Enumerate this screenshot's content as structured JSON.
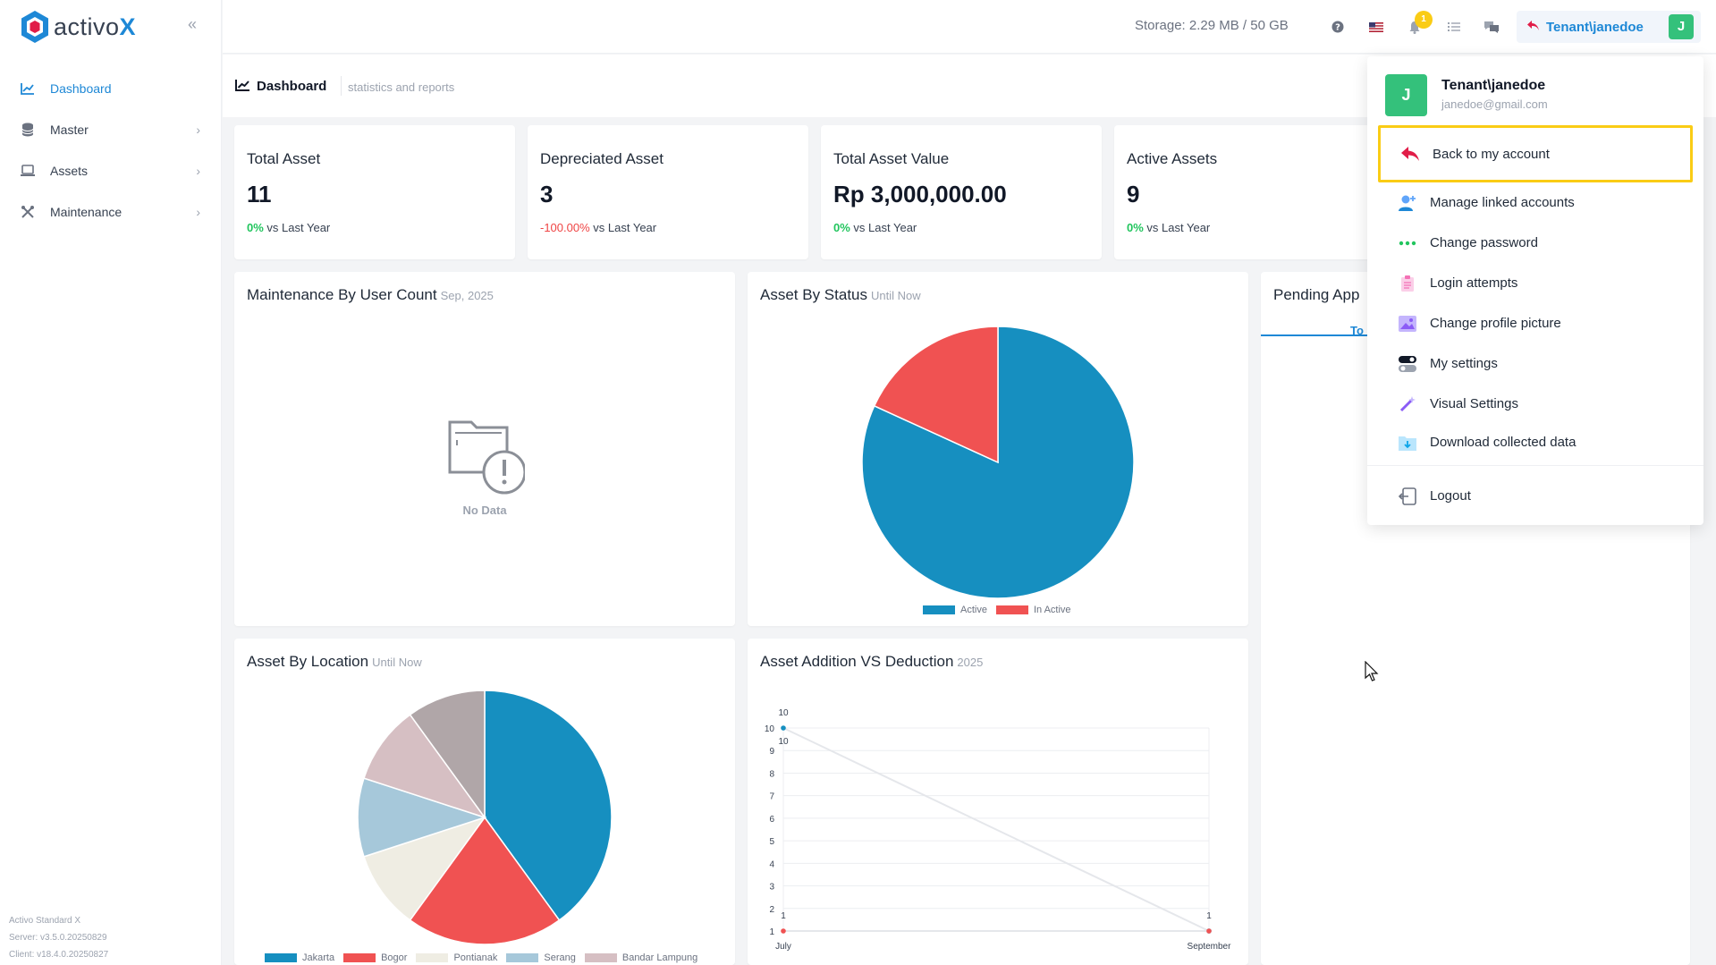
{
  "app": {
    "logo_text": "activo",
    "logo_x": "X",
    "collapse_icon": "double-chevron-left-icon"
  },
  "sidebar": {
    "items": [
      {
        "label": "Dashboard",
        "icon": "chart-icon",
        "active": true
      },
      {
        "label": "Master",
        "icon": "database-icon",
        "active": false
      },
      {
        "label": "Assets",
        "icon": "laptop-icon",
        "active": false
      },
      {
        "label": "Maintenance",
        "icon": "tools-icon",
        "active": false
      }
    ],
    "footer": {
      "product": "Activo Standard X",
      "server": "Server: v3.5.0.20250829",
      "client": "Client: v18.4.0.20250827"
    }
  },
  "topbar": {
    "storage": "Storage: 2.29 MB / 50 GB",
    "notification_count": "1",
    "user_label": "Tenant\\janedoe",
    "avatar_initial": "J"
  },
  "page_header": {
    "title": "Dashboard",
    "subtitle": "statistics and reports"
  },
  "stats": [
    {
      "title": "Total Asset",
      "value": "11",
      "change": "0%",
      "suffix": "vs Last Year",
      "positive": true
    },
    {
      "title": "Depreciated Asset",
      "value": "3",
      "change": "-100.00%",
      "suffix": "vs Last Year",
      "positive": false
    },
    {
      "title": "Total Asset Value",
      "value": "Rp 3,000,000.00",
      "change": "0%",
      "suffix": "vs Last Year",
      "positive": true
    },
    {
      "title": "Active Assets",
      "value": "9",
      "change": "0%",
      "suffix": "vs Last Year",
      "positive": true
    }
  ],
  "maintenance_card": {
    "title": "Maintenance By User Count",
    "sub": "Sep, 2025",
    "no_data": "No Data"
  },
  "status_card": {
    "title": "Asset By Status",
    "sub": "Until Now"
  },
  "location_card": {
    "title": "Asset By Location",
    "sub": "Until Now"
  },
  "addition_card": {
    "title": "Asset Addition VS Deduction",
    "sub": "2025"
  },
  "pending_card": {
    "title": "Pending App",
    "tab": "To"
  },
  "chart_data": [
    {
      "type": "pie",
      "title": "Asset By Status",
      "labels": [
        "Active",
        "In Active"
      ],
      "values": [
        9,
        2
      ],
      "colors": [
        "#168fc0",
        "#f05252"
      ],
      "legend": "bottom"
    },
    {
      "type": "pie",
      "title": "Asset By Location",
      "labels": [
        "Jakarta",
        "Bogor",
        "Pontianak",
        "Serang",
        "Bandar Lampung",
        ""
      ],
      "values": [
        4,
        2,
        1,
        1,
        1,
        1
      ],
      "colors": [
        "#168fc0",
        "#f05252",
        "#efede3",
        "#a6c8da",
        "#d6bfc3",
        "#b0a6a8"
      ],
      "legend": "bottom"
    },
    {
      "type": "line",
      "title": "Asset Addition VS Deduction",
      "categories": [
        "July",
        "September"
      ],
      "series": [
        {
          "values": [
            10,
            1
          ],
          "color": "#168fc0"
        },
        {
          "values": [
            1,
            1
          ],
          "color": "#f05252"
        }
      ],
      "point_labels": [
        "10",
        "1",
        "1"
      ],
      "y_ticks": [
        "1",
        "2",
        "3",
        "4",
        "5",
        "6",
        "7",
        "8",
        "9",
        "10"
      ],
      "ylim": [
        1,
        10
      ],
      "grid": true
    }
  ],
  "dropdown": {
    "name": "Tenant\\janedoe",
    "email": "janedoe@gmail.com",
    "avatar_initial": "J",
    "items": [
      {
        "label": "Back to my account",
        "icon": "reply-arrow-icon",
        "highlight": true
      },
      {
        "label": "Manage linked accounts",
        "icon": "user-plus-icon"
      },
      {
        "label": "Change password",
        "icon": "dots-icon"
      },
      {
        "label": "Login attempts",
        "icon": "clipboard-icon"
      },
      {
        "label": "Change profile picture",
        "icon": "image-icon"
      },
      {
        "label": "My settings",
        "icon": "toggle-icon"
      },
      {
        "label": "Visual Settings",
        "icon": "wand-icon"
      },
      {
        "label": "Download collected data",
        "icon": "folder-download-icon"
      }
    ],
    "logout": "Logout"
  }
}
